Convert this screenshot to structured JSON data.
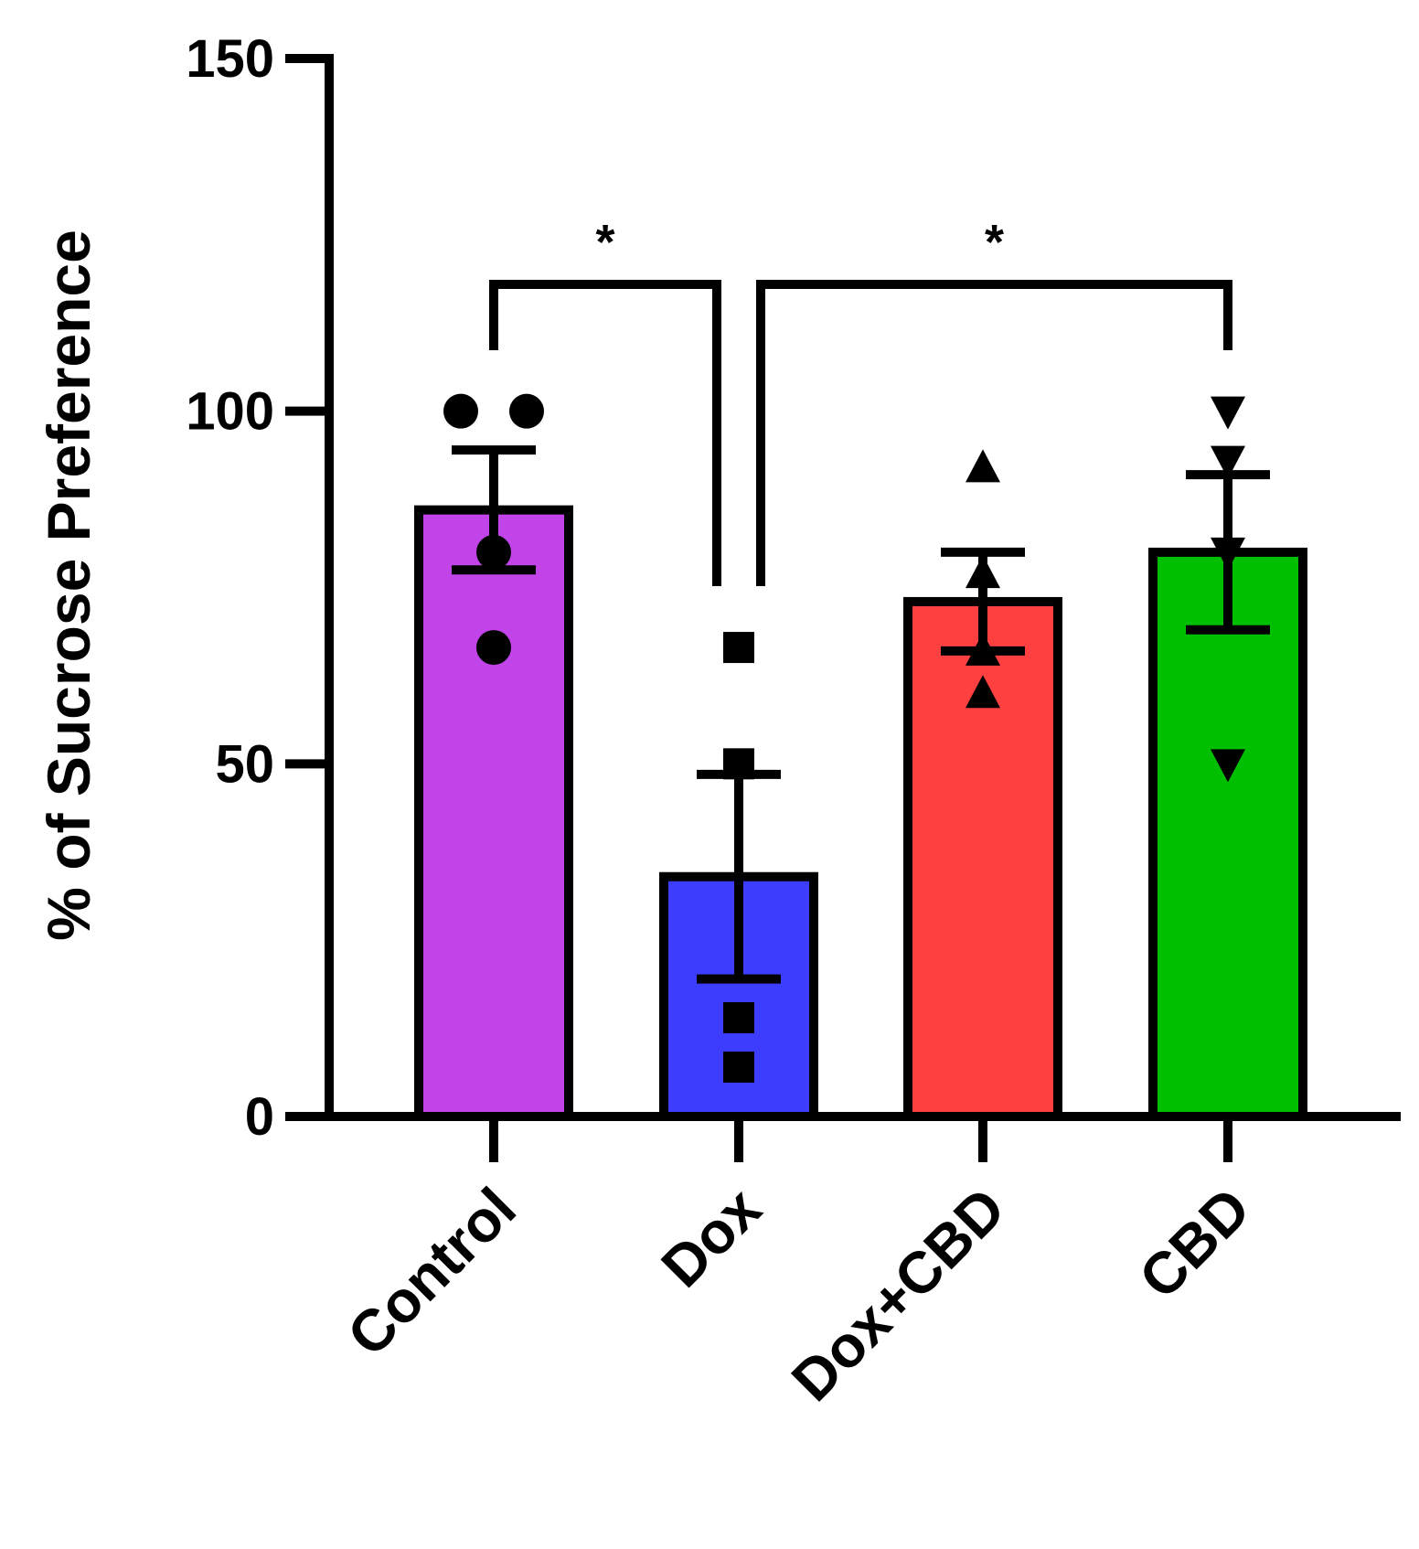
{
  "chart_data": {
    "type": "bar",
    "title": "",
    "xlabel": "",
    "ylabel": "% of Sucrose Preference",
    "ylim": [
      0,
      150
    ],
    "yticks": [
      0,
      50,
      100,
      150
    ],
    "categories": [
      "Control",
      "Dox",
      "Dox+CBD",
      "CBD"
    ],
    "colors": [
      "#c044e8",
      "#3d3dff",
      "#ff4040",
      "#00bf00"
    ],
    "values": [
      86,
      34,
      73,
      80
    ],
    "errors": [
      8.5,
      14.5,
      7,
      11
    ],
    "markers": [
      "circle",
      "square",
      "triangle-up",
      "triangle-down"
    ],
    "points": [
      [
        100,
        100,
        80,
        66.5
      ],
      [
        66.5,
        50,
        14,
        7
      ],
      [
        92,
        77,
        66,
        60
      ],
      [
        100,
        93,
        80,
        50
      ]
    ],
    "significance": [
      {
        "from": "Control",
        "to": "Dox",
        "label": "*"
      },
      {
        "from": "Dox",
        "to": "CBD",
        "label": "*"
      }
    ]
  }
}
